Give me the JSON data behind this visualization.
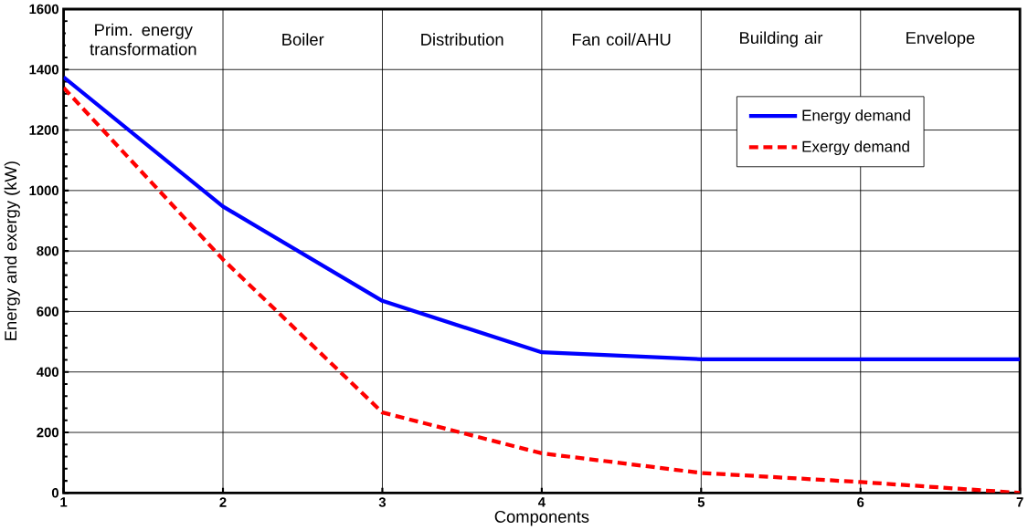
{
  "chart_data": {
    "type": "line",
    "xlabel": "Components",
    "ylabel": "Energy and exergy  (kW)",
    "x": [
      1,
      2,
      3,
      4,
      5,
      6,
      7
    ],
    "series": [
      {
        "name": "Energy demand",
        "color": "#0000ff",
        "line_style": "solid",
        "values": [
          1375,
          947,
          635,
          465,
          442,
          442,
          442
        ]
      },
      {
        "name": "Exergy demand",
        "color": "#ff0000",
        "line_style": "dashed",
        "values": [
          1340,
          772,
          266,
          131,
          66,
          36,
          0
        ]
      }
    ],
    "xlim": [
      1,
      7
    ],
    "xticks": [
      1,
      2,
      3,
      4,
      5,
      6,
      7
    ],
    "ylim": [
      0,
      1600
    ],
    "yticks": [
      0,
      200,
      400,
      600,
      800,
      1000,
      1200,
      1400,
      1600
    ],
    "grid": true,
    "legend": "top right",
    "marker": "none",
    "annotations": [
      "Prim. energy transformation",
      "Boiler",
      "Distribution",
      "Fan coil/AHU",
      "Building air",
      "Envelope"
    ]
  }
}
